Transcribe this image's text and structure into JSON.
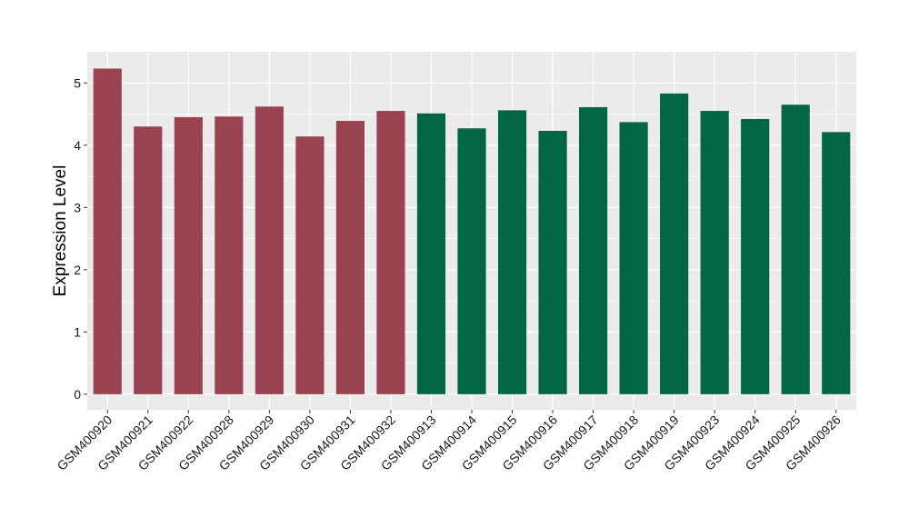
{
  "chart_data": {
    "type": "bar",
    "title": "",
    "xlabel": "",
    "ylabel": "Expression Level",
    "ylim": [
      -0.25,
      5.5
    ],
    "yticks": [
      0,
      1,
      2,
      3,
      4,
      5
    ],
    "grid": true,
    "legend": "none",
    "colors": {
      "panel": "#EBEBEB",
      "grid": "#FFFFFF",
      "group_a": "#9A4250",
      "group_b": "#006644"
    },
    "categories": [
      "GSM400920",
      "GSM400921",
      "GSM400922",
      "GSM400928",
      "GSM400929",
      "GSM400930",
      "GSM400931",
      "GSM400932",
      "GSM400913",
      "GSM400914",
      "GSM400915",
      "GSM400916",
      "GSM400917",
      "GSM400918",
      "GSM400919",
      "GSM400923",
      "GSM400924",
      "GSM400925",
      "GSM400926"
    ],
    "values": [
      5.23,
      4.3,
      4.45,
      4.46,
      4.62,
      4.14,
      4.39,
      4.55,
      4.51,
      4.27,
      4.56,
      4.23,
      4.61,
      4.37,
      4.83,
      4.55,
      4.42,
      4.65,
      4.21
    ],
    "bar_groups": [
      "a",
      "a",
      "a",
      "a",
      "a",
      "a",
      "a",
      "a",
      "b",
      "b",
      "b",
      "b",
      "b",
      "b",
      "b",
      "b",
      "b",
      "b",
      "b"
    ]
  }
}
